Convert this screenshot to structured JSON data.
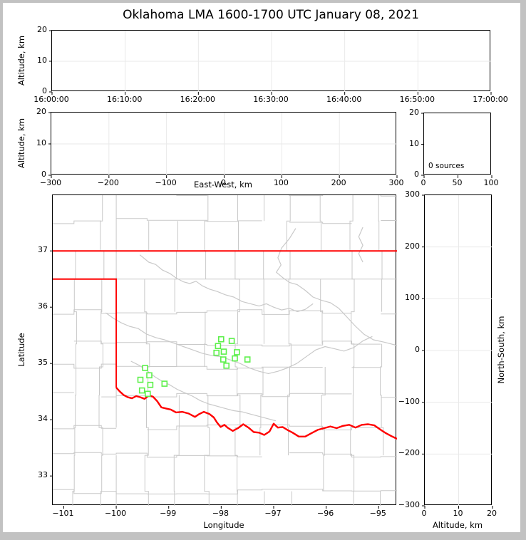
{
  "title": "Oklahoma LMA 1600-1700 UTC January 08, 2021",
  "labels": {
    "altitude_km": "Altitude, km",
    "east_west": "East-West, km",
    "north_south": "North-South, km",
    "longitude": "Longitude",
    "latitude": "Latitude",
    "sources_annotation": "0 sources"
  },
  "colors": {
    "grid": "#e9e9e9",
    "county_lines": "#c9c9c9",
    "state_border": "#ff0000",
    "stations": "#5cf04a",
    "spine": "#000000",
    "window_frame": "#c2c2c2"
  },
  "panels": {
    "time_height": {
      "yticks": [
        "20",
        "10",
        "0"
      ],
      "xticks": [
        "16:00:00",
        "16:10:00",
        "16:20:00",
        "16:30:00",
        "16:40:00",
        "16:50:00",
        "17:00:00"
      ]
    },
    "ew_height": {
      "yticks": [
        "20",
        "10",
        "0"
      ],
      "xticks": [
        "−300",
        "−200",
        "−100",
        "0",
        "100",
        "200",
        "300"
      ]
    },
    "histogram": {
      "yticks": [
        "20",
        "10",
        "0"
      ],
      "xticks": [
        "0",
        "50",
        "100"
      ]
    },
    "map": {
      "lon_range": [
        -101.21,
        -94.65
      ],
      "lat_range": [
        32.47,
        37.99
      ],
      "xticks": [
        {
          "v": -101,
          "label": "−101"
        },
        {
          "v": -100,
          "label": "−100"
        },
        {
          "v": -99,
          "label": "−99"
        },
        {
          "v": -98,
          "label": "−98"
        },
        {
          "v": -97,
          "label": "−97"
        },
        {
          "v": -96,
          "label": "−96"
        },
        {
          "v": -95,
          "label": "−95"
        }
      ],
      "yticks": [
        {
          "v": 37,
          "label": "37"
        },
        {
          "v": 36,
          "label": "36"
        },
        {
          "v": 35,
          "label": "35"
        },
        {
          "v": 34,
          "label": "34"
        },
        {
          "v": 33,
          "label": "33"
        }
      ]
    },
    "ns_height": {
      "yticks": [
        "300",
        "200",
        "100",
        "0",
        "−100",
        "−200",
        "−300"
      ],
      "xticks": [
        "0",
        "10",
        "20"
      ]
    }
  },
  "map_layers": {
    "county_grid": {
      "seed": 20210108,
      "note": "approximate light-gray county boundary texture"
    },
    "state_border_north": [
      [
        -101.21,
        37.0
      ],
      [
        -94.65,
        37.0
      ]
    ],
    "state_border_west": [
      [
        -101.21,
        36.5
      ],
      [
        -100.0,
        36.5
      ],
      [
        -100.0,
        34.57
      ]
    ],
    "red_river": [
      [
        -100.0,
        34.57
      ],
      [
        -99.93,
        34.5
      ],
      [
        -99.86,
        34.44
      ],
      [
        -99.78,
        34.4
      ],
      [
        -99.7,
        34.38
      ],
      [
        -99.62,
        34.42
      ],
      [
        -99.54,
        34.4
      ],
      [
        -99.46,
        34.37
      ],
      [
        -99.38,
        34.43
      ],
      [
        -99.3,
        34.41
      ],
      [
        -99.22,
        34.33
      ],
      [
        -99.14,
        34.22
      ],
      [
        -99.05,
        34.2
      ],
      [
        -98.96,
        34.18
      ],
      [
        -98.86,
        34.13
      ],
      [
        -98.74,
        34.14
      ],
      [
        -98.62,
        34.11
      ],
      [
        -98.5,
        34.05
      ],
      [
        -98.42,
        34.1
      ],
      [
        -98.33,
        34.14
      ],
      [
        -98.22,
        34.1
      ],
      [
        -98.14,
        34.04
      ],
      [
        -98.08,
        33.95
      ],
      [
        -98.01,
        33.87
      ],
      [
        -97.94,
        33.91
      ],
      [
        -97.88,
        33.86
      ],
      [
        -97.78,
        33.8
      ],
      [
        -97.68,
        33.85
      ],
      [
        -97.58,
        33.92
      ],
      [
        -97.48,
        33.86
      ],
      [
        -97.38,
        33.78
      ],
      [
        -97.28,
        33.77
      ],
      [
        -97.18,
        33.73
      ],
      [
        -97.08,
        33.79
      ],
      [
        -97.0,
        33.93
      ],
      [
        -96.92,
        33.86
      ],
      [
        -96.83,
        33.87
      ],
      [
        -96.74,
        33.82
      ],
      [
        -96.64,
        33.77
      ],
      [
        -96.52,
        33.7
      ],
      [
        -96.4,
        33.7
      ],
      [
        -96.28,
        33.76
      ],
      [
        -96.16,
        33.82
      ],
      [
        -96.04,
        33.85
      ],
      [
        -95.92,
        33.88
      ],
      [
        -95.8,
        33.85
      ],
      [
        -95.68,
        33.89
      ],
      [
        -95.56,
        33.91
      ],
      [
        -95.44,
        33.86
      ],
      [
        -95.32,
        33.91
      ],
      [
        -95.2,
        33.92
      ],
      [
        -95.08,
        33.9
      ],
      [
        -94.96,
        33.82
      ],
      [
        -94.86,
        33.76
      ],
      [
        -94.76,
        33.71
      ],
      [
        -94.65,
        33.66
      ]
    ],
    "rivers": [
      [
        [
          -99.55,
          36.93
        ],
        [
          -99.38,
          36.8
        ],
        [
          -99.25,
          36.76
        ],
        [
          -99.12,
          36.66
        ],
        [
          -98.98,
          36.6
        ],
        [
          -98.86,
          36.52
        ],
        [
          -98.72,
          36.45
        ],
        [
          -98.6,
          36.42
        ],
        [
          -98.48,
          36.46
        ],
        [
          -98.36,
          36.38
        ],
        [
          -98.22,
          36.32
        ],
        [
          -98.08,
          36.28
        ],
        [
          -97.92,
          36.22
        ],
        [
          -97.76,
          36.18
        ],
        [
          -97.6,
          36.1
        ],
        [
          -97.44,
          36.06
        ],
        [
          -97.28,
          36.02
        ],
        [
          -97.14,
          36.06
        ],
        [
          -97.0,
          36.0
        ],
        [
          -96.85,
          35.95
        ],
        [
          -96.7,
          35.98
        ],
        [
          -96.55,
          35.92
        ],
        [
          -96.4,
          35.96
        ],
        [
          -96.25,
          36.06
        ]
      ],
      [
        [
          -96.58,
          37.4
        ],
        [
          -96.7,
          37.22
        ],
        [
          -96.85,
          37.05
        ],
        [
          -96.92,
          36.88
        ],
        [
          -96.86,
          36.75
        ],
        [
          -96.95,
          36.62
        ],
        [
          -96.82,
          36.52
        ],
        [
          -96.7,
          36.44
        ],
        [
          -96.55,
          36.4
        ],
        [
          -96.4,
          36.3
        ],
        [
          -96.25,
          36.18
        ],
        [
          -96.08,
          36.12
        ],
        [
          -95.92,
          36.08
        ],
        [
          -95.76,
          35.98
        ],
        [
          -95.6,
          35.82
        ],
        [
          -95.44,
          35.66
        ],
        [
          -95.28,
          35.52
        ],
        [
          -95.1,
          35.42
        ],
        [
          -94.9,
          35.38
        ],
        [
          -94.65,
          35.32
        ]
      ],
      [
        [
          -100.2,
          35.9
        ],
        [
          -100.05,
          35.8
        ],
        [
          -99.9,
          35.72
        ],
        [
          -99.75,
          35.66
        ],
        [
          -99.58,
          35.62
        ],
        [
          -99.42,
          35.52
        ],
        [
          -99.25,
          35.46
        ],
        [
          -99.08,
          35.42
        ],
        [
          -98.9,
          35.36
        ],
        [
          -98.72,
          35.3
        ],
        [
          -98.54,
          35.24
        ],
        [
          -98.36,
          35.18
        ],
        [
          -98.18,
          35.14
        ],
        [
          -98.0,
          35.12
        ],
        [
          -97.82,
          35.06
        ],
        [
          -97.64,
          35.0
        ],
        [
          -97.46,
          34.92
        ],
        [
          -97.28,
          34.86
        ],
        [
          -97.1,
          34.82
        ],
        [
          -96.92,
          34.86
        ],
        [
          -96.74,
          34.92
        ],
        [
          -96.56,
          35.0
        ],
        [
          -96.38,
          35.12
        ],
        [
          -96.2,
          35.24
        ],
        [
          -96.02,
          35.3
        ],
        [
          -95.84,
          35.26
        ],
        [
          -95.66,
          35.22
        ],
        [
          -95.48,
          35.28
        ],
        [
          -95.3,
          35.4
        ],
        [
          -95.12,
          35.48
        ]
      ],
      [
        [
          -99.72,
          35.04
        ],
        [
          -99.55,
          34.96
        ],
        [
          -99.4,
          34.86
        ],
        [
          -99.26,
          34.76
        ],
        [
          -99.12,
          34.68
        ],
        [
          -98.98,
          34.62
        ],
        [
          -98.84,
          34.54
        ],
        [
          -98.7,
          34.48
        ],
        [
          -98.55,
          34.42
        ],
        [
          -98.4,
          34.34
        ],
        [
          -98.24,
          34.28
        ],
        [
          -98.08,
          34.24
        ],
        [
          -97.92,
          34.2
        ],
        [
          -97.76,
          34.16
        ],
        [
          -97.6,
          34.14
        ],
        [
          -97.44,
          34.1
        ],
        [
          -97.28,
          34.06
        ],
        [
          -97.12,
          34.02
        ],
        [
          -96.96,
          33.98
        ]
      ],
      [
        [
          -95.3,
          37.42
        ],
        [
          -95.38,
          37.25
        ],
        [
          -95.3,
          37.1
        ],
        [
          -95.38,
          36.95
        ],
        [
          -95.3,
          36.8
        ]
      ]
    ]
  },
  "chart_data": [
    {
      "type": "scatter",
      "panel": "time-altitude",
      "ylabel": "Altitude, km",
      "ylim": [
        0,
        20
      ],
      "xticks": [
        "16:00:00",
        "16:10:00",
        "16:20:00",
        "16:30:00",
        "16:40:00",
        "16:50:00",
        "17:00:00"
      ],
      "series": [],
      "grid": true,
      "note": "no VHF sources plotted"
    },
    {
      "type": "scatter",
      "panel": "eastwest-altitude",
      "xlabel": "East-West, km",
      "ylabel": "Altitude, km",
      "xlim": [
        -300,
        300
      ],
      "ylim": [
        0,
        20
      ],
      "series": [],
      "grid": true
    },
    {
      "type": "histogram",
      "panel": "altitude-histogram",
      "xlim": [
        0,
        100
      ],
      "ylim": [
        0,
        20
      ],
      "annotation": "0 sources",
      "series": [],
      "grid": false
    },
    {
      "type": "scatter",
      "panel": "plan-view-map",
      "xlabel": "Longitude",
      "ylabel": "Latitude",
      "xlim": [
        -101.21,
        -94.65
      ],
      "ylim": [
        32.47,
        37.99
      ],
      "grid": false,
      "series": [
        {
          "name": "lma-stations",
          "marker": "open-square",
          "color": "#5cf04a",
          "points": [
            [
              -98.0,
              35.43
            ],
            [
              -97.8,
              35.4
            ],
            [
              -98.06,
              35.31
            ],
            [
              -98.09,
              35.19
            ],
            [
              -97.95,
              35.21
            ],
            [
              -97.7,
              35.2
            ],
            [
              -97.96,
              35.07
            ],
            [
              -97.74,
              35.09
            ],
            [
              -97.5,
              35.07
            ],
            [
              -97.9,
              34.96
            ],
            [
              -99.45,
              34.92
            ],
            [
              -99.37,
              34.79
            ],
            [
              -99.54,
              34.71
            ],
            [
              -99.35,
              34.62
            ],
            [
              -99.08,
              34.64
            ],
            [
              -99.51,
              34.52
            ],
            [
              -99.4,
              34.46
            ]
          ]
        }
      ]
    },
    {
      "type": "scatter",
      "panel": "northsouth-altitude",
      "xlabel": "Altitude, km",
      "ylabel": "North-South, km",
      "xlim": [
        0,
        20
      ],
      "ylim": [
        -300,
        300
      ],
      "series": [],
      "grid": true
    }
  ]
}
